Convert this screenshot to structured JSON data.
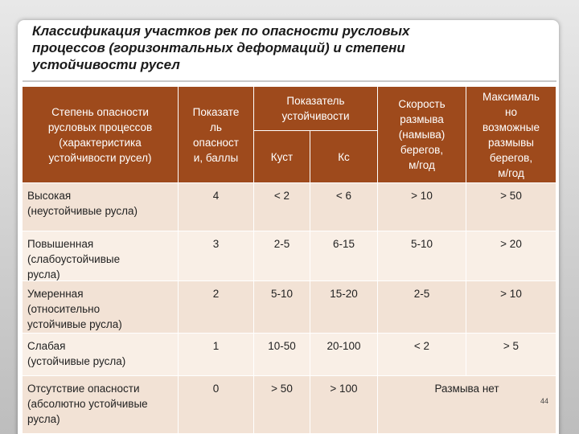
{
  "title": [
    "Классификация участков рек по опасности русловых",
    "процессов (горизонтальных деформаций) и степени",
    "устойчивости русел"
  ],
  "table": {
    "header": {
      "danger_level": [
        "Степень опасности",
        "русловых процессов",
        "(характеристика",
        "устойчивости русел)"
      ],
      "danger_points": [
        "Показате",
        "ль",
        "опасност",
        "и, баллы"
      ],
      "stability": [
        "Показатель",
        "устойчивости"
      ],
      "k_ust": "Куст",
      "k_c": "Кс",
      "erosion_rate": [
        "Скорость",
        "размыва",
        "(намыва)",
        "берегов,",
        "м/год"
      ],
      "max_erosion": [
        "Максималь",
        "но",
        "возможные",
        "размывы",
        "берегов,",
        "м/год"
      ]
    },
    "rows": [
      [
        [
          "Высокая",
          "(неустойчивые русла)"
        ],
        "4",
        "< 2",
        "< 6",
        "> 10",
        "> 50"
      ],
      [
        [
          "Повышенная",
          "(слабоустойчивые",
          "русла)"
        ],
        "3",
        "2-5",
        "6-15",
        "5-10",
        "> 20"
      ],
      [
        [
          "Умеренная",
          "(относительно",
          "устойчивые русла)"
        ],
        "2",
        "5-10",
        "15-20",
        "2-5",
        "> 10"
      ],
      [
        [
          "Слабая",
          "(устойчивые русла)"
        ],
        "1",
        "10-50",
        "20-100",
        "< 2",
        "> 5"
      ],
      [
        [
          "Отсутствие опасности",
          "(абсолютно устойчивые",
          "русла)"
        ],
        "0",
        "> 50",
        "> 100",
        "Размыва нет"
      ]
    ]
  },
  "page_number": "44"
}
